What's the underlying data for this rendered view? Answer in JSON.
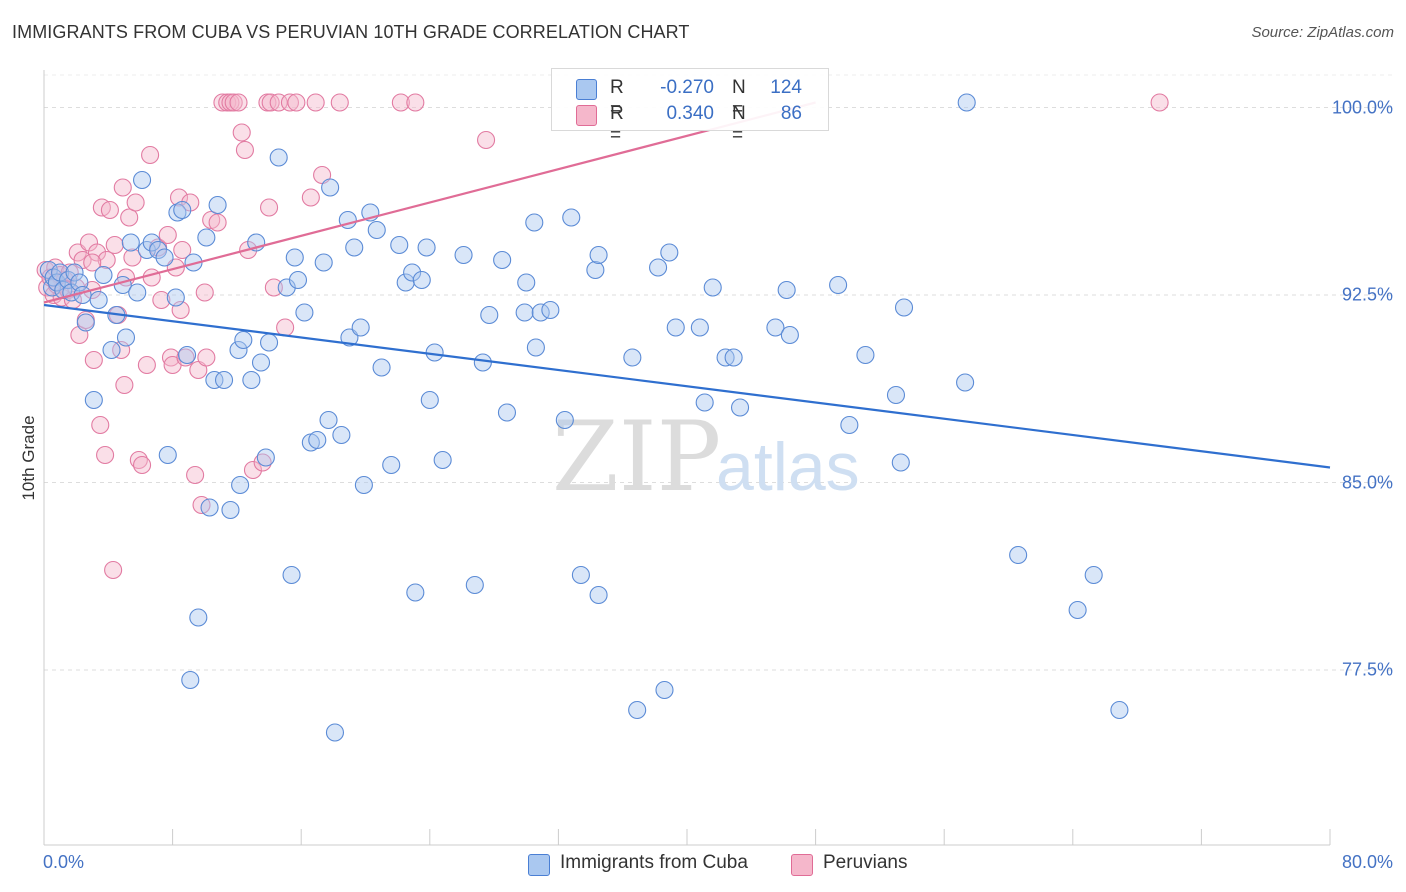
{
  "title": "IMMIGRANTS FROM CUBA VS PERUVIAN 10TH GRADE CORRELATION CHART",
  "source": "Source: ZipAtlas.com",
  "watermark": {
    "zip": "ZIP",
    "atlas": "atlas"
  },
  "colors": {
    "blue": "#4a7fd4",
    "blue_fill": "#aac8f0",
    "pink": "#e06c96",
    "pink_fill": "#f5b7cb",
    "axis_text": "#4472c4",
    "grid": "#dddddd"
  },
  "legend": {
    "rows": [
      {
        "r_label": "R =",
        "r_value": "-0.270",
        "n_label": "N =",
        "n_value": "124"
      },
      {
        "r_label": "R =",
        "r_value": "0.340",
        "n_label": "N =",
        "n_value": "86"
      }
    ],
    "bottom": [
      "Immigrants from Cuba",
      "Peruvians"
    ]
  },
  "chart_data": {
    "type": "scatter",
    "title": "IMMIGRANTS FROM CUBA VS PERUVIAN 10TH GRADE CORRELATION CHART",
    "xlabel": "",
    "ylabel": "10th Grade",
    "xlim": [
      0,
      80
    ],
    "ylim": [
      70.5,
      101.5
    ],
    "x_tick_labels": [
      "0.0%",
      "80.0%"
    ],
    "y_ticks": [
      77.5,
      85.0,
      92.5,
      100.0
    ],
    "y_tick_labels": [
      "77.5%",
      "85.0%",
      "92.5%",
      "100.0%"
    ],
    "grid": true,
    "series": [
      {
        "name": "Immigrants from Cuba",
        "r": -0.27,
        "n": 124,
        "trend": {
          "x": [
            0,
            80
          ],
          "y": [
            92.1,
            85.6
          ]
        },
        "points": [
          [
            0.3,
            93.5
          ],
          [
            0.5,
            92.8
          ],
          [
            0.6,
            93.2
          ],
          [
            0.8,
            93.0
          ],
          [
            1.0,
            93.4
          ],
          [
            1.2,
            92.7
          ],
          [
            1.5,
            93.1
          ],
          [
            1.7,
            92.6
          ],
          [
            1.9,
            93.4
          ],
          [
            2.2,
            93.0
          ],
          [
            2.4,
            92.5
          ],
          [
            2.6,
            91.4
          ],
          [
            3.1,
            88.3
          ],
          [
            3.4,
            92.3
          ],
          [
            3.7,
            93.3
          ],
          [
            4.2,
            90.3
          ],
          [
            4.5,
            91.7
          ],
          [
            4.9,
            92.9
          ],
          [
            5.1,
            90.8
          ],
          [
            5.4,
            94.6
          ],
          [
            5.8,
            92.6
          ],
          [
            6.1,
            97.1
          ],
          [
            6.4,
            94.3
          ],
          [
            6.7,
            94.6
          ],
          [
            7.1,
            94.3
          ],
          [
            7.5,
            94.0
          ],
          [
            7.7,
            86.1
          ],
          [
            8.2,
            92.4
          ],
          [
            8.3,
            95.8
          ],
          [
            8.6,
            95.9
          ],
          [
            8.9,
            90.1
          ],
          [
            9.1,
            77.1
          ],
          [
            9.3,
            93.8
          ],
          [
            9.6,
            79.6
          ],
          [
            10.1,
            94.8
          ],
          [
            10.3,
            84.0
          ],
          [
            10.6,
            89.1
          ],
          [
            10.8,
            96.1
          ],
          [
            11.2,
            89.1
          ],
          [
            11.6,
            83.9
          ],
          [
            12.1,
            90.3
          ],
          [
            12.2,
            84.9
          ],
          [
            12.4,
            90.7
          ],
          [
            12.9,
            89.1
          ],
          [
            13.2,
            94.6
          ],
          [
            13.5,
            89.8
          ],
          [
            13.8,
            86.0
          ],
          [
            14.0,
            90.6
          ],
          [
            14.6,
            98.0
          ],
          [
            15.1,
            92.8
          ],
          [
            15.4,
            81.3
          ],
          [
            15.6,
            94.0
          ],
          [
            15.8,
            93.1
          ],
          [
            16.2,
            91.8
          ],
          [
            16.6,
            86.6
          ],
          [
            17.0,
            86.7
          ],
          [
            17.4,
            93.8
          ],
          [
            17.7,
            87.5
          ],
          [
            17.8,
            96.8
          ],
          [
            18.1,
            75.0
          ],
          [
            18.5,
            86.9
          ],
          [
            18.9,
            95.5
          ],
          [
            19.0,
            90.8
          ],
          [
            19.3,
            94.4
          ],
          [
            19.7,
            91.2
          ],
          [
            19.9,
            84.9
          ],
          [
            20.3,
            95.8
          ],
          [
            20.7,
            95.1
          ],
          [
            21.0,
            89.6
          ],
          [
            21.6,
            85.7
          ],
          [
            22.1,
            94.5
          ],
          [
            22.5,
            93.0
          ],
          [
            22.9,
            93.4
          ],
          [
            23.1,
            80.6
          ],
          [
            23.5,
            93.1
          ],
          [
            23.8,
            94.4
          ],
          [
            24.0,
            88.3
          ],
          [
            24.3,
            90.2
          ],
          [
            24.8,
            85.9
          ],
          [
            26.1,
            94.1
          ],
          [
            26.8,
            80.9
          ],
          [
            27.3,
            89.8
          ],
          [
            27.7,
            91.7
          ],
          [
            28.5,
            93.9
          ],
          [
            28.8,
            87.8
          ],
          [
            29.9,
            91.8
          ],
          [
            30.0,
            93.0
          ],
          [
            30.5,
            95.4
          ],
          [
            30.6,
            90.4
          ],
          [
            30.9,
            91.8
          ],
          [
            31.5,
            91.9
          ],
          [
            32.4,
            87.5
          ],
          [
            32.8,
            95.6
          ],
          [
            33.4,
            81.3
          ],
          [
            34.3,
            93.5
          ],
          [
            34.5,
            80.5
          ],
          [
            34.5,
            94.1
          ],
          [
            36.6,
            90.0
          ],
          [
            36.9,
            75.9
          ],
          [
            38.2,
            93.6
          ],
          [
            38.6,
            76.7
          ],
          [
            38.9,
            94.2
          ],
          [
            39.3,
            91.2
          ],
          [
            40.8,
            91.2
          ],
          [
            41.1,
            88.2
          ],
          [
            41.6,
            92.8
          ],
          [
            42.4,
            90.0
          ],
          [
            42.9,
            90.0
          ],
          [
            43.3,
            88.0
          ],
          [
            45.5,
            91.2
          ],
          [
            46.2,
            92.7
          ],
          [
            46.4,
            90.9
          ],
          [
            49.4,
            92.9
          ],
          [
            50.1,
            87.3
          ],
          [
            51.1,
            90.1
          ],
          [
            53.0,
            88.5
          ],
          [
            53.3,
            85.8
          ],
          [
            53.5,
            92.0
          ],
          [
            57.3,
            89.0
          ],
          [
            57.4,
            100.2
          ],
          [
            60.6,
            82.1
          ],
          [
            64.3,
            79.9
          ],
          [
            65.3,
            81.3
          ],
          [
            66.9,
            75.9
          ]
        ]
      },
      {
        "name": "Peruvians",
        "r": 0.34,
        "n": 86,
        "trend": {
          "x": [
            0,
            48
          ],
          "y": [
            92.2,
            100.2
          ]
        },
        "points": [
          [
            0.1,
            93.5
          ],
          [
            0.2,
            92.8
          ],
          [
            0.4,
            93.2
          ],
          [
            0.6,
            92.5
          ],
          [
            0.7,
            93.6
          ],
          [
            0.8,
            92.9
          ],
          [
            1.0,
            93.3
          ],
          [
            1.1,
            92.4
          ],
          [
            1.3,
            93.1
          ],
          [
            1.5,
            92.7
          ],
          [
            1.6,
            93.4
          ],
          [
            1.8,
            92.3
          ],
          [
            2.0,
            92.8
          ],
          [
            2.1,
            94.2
          ],
          [
            2.2,
            90.9
          ],
          [
            2.4,
            93.9
          ],
          [
            2.6,
            91.5
          ],
          [
            2.8,
            94.6
          ],
          [
            3.0,
            92.7
          ],
          [
            3.1,
            89.9
          ],
          [
            3.3,
            94.2
          ],
          [
            3.5,
            87.3
          ],
          [
            3.6,
            96.0
          ],
          [
            3.8,
            86.1
          ],
          [
            3.9,
            93.9
          ],
          [
            4.1,
            95.9
          ],
          [
            4.3,
            81.5
          ],
          [
            4.4,
            94.5
          ],
          [
            4.6,
            91.7
          ],
          [
            4.8,
            90.3
          ],
          [
            4.9,
            96.8
          ],
          [
            5.1,
            93.2
          ],
          [
            5.3,
            95.6
          ],
          [
            5.5,
            94.0
          ],
          [
            5.7,
            96.2
          ],
          [
            5.9,
            85.9
          ],
          [
            6.1,
            85.7
          ],
          [
            6.4,
            89.7
          ],
          [
            6.6,
            98.1
          ],
          [
            6.7,
            93.2
          ],
          [
            7.1,
            94.4
          ],
          [
            7.3,
            92.3
          ],
          [
            7.7,
            94.9
          ],
          [
            7.9,
            90.0
          ],
          [
            8.0,
            89.7
          ],
          [
            8.2,
            93.6
          ],
          [
            8.4,
            96.4
          ],
          [
            8.6,
            94.3
          ],
          [
            8.8,
            90.0
          ],
          [
            9.1,
            96.2
          ],
          [
            9.4,
            85.3
          ],
          [
            9.6,
            89.5
          ],
          [
            9.8,
            84.1
          ],
          [
            10.1,
            90.0
          ],
          [
            10.4,
            95.5
          ],
          [
            10.8,
            95.4
          ],
          [
            11.1,
            100.2
          ],
          [
            11.4,
            100.2
          ],
          [
            11.6,
            100.2
          ],
          [
            11.8,
            100.2
          ],
          [
            12.1,
            100.2
          ],
          [
            12.3,
            99.0
          ],
          [
            12.5,
            98.3
          ],
          [
            12.7,
            94.3
          ],
          [
            13.0,
            85.5
          ],
          [
            13.6,
            85.8
          ],
          [
            13.9,
            100.2
          ],
          [
            14.1,
            100.2
          ],
          [
            14.3,
            92.8
          ],
          [
            14.6,
            100.2
          ],
          [
            15.0,
            91.2
          ],
          [
            15.3,
            100.2
          ],
          [
            15.7,
            100.2
          ],
          [
            16.6,
            96.4
          ],
          [
            16.9,
            100.2
          ],
          [
            17.3,
            97.3
          ],
          [
            18.4,
            100.2
          ],
          [
            22.2,
            100.2
          ],
          [
            23.1,
            100.2
          ],
          [
            27.5,
            98.7
          ],
          [
            3.0,
            93.8
          ],
          [
            5.0,
            88.9
          ],
          [
            8.5,
            91.9
          ],
          [
            10.0,
            92.6
          ],
          [
            14.0,
            96.0
          ],
          [
            69.4,
            100.2
          ]
        ]
      }
    ]
  }
}
